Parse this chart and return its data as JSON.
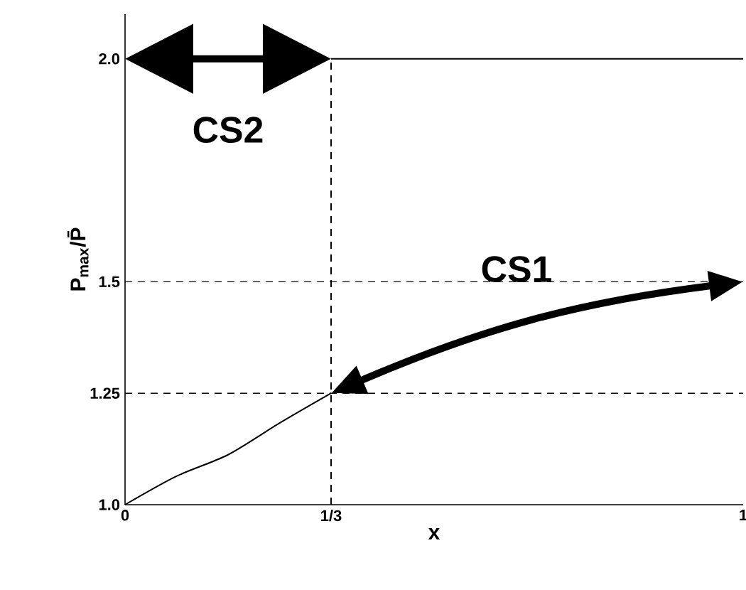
{
  "chart_data": {
    "type": "line",
    "xlabel": "x",
    "ylabel": "P$_{max}$/P̄",
    "xlim": [
      0,
      1
    ],
    "ylim": [
      1.0,
      2.1
    ],
    "xticks": [
      0,
      {
        "value": 0.3333,
        "label": "1/3"
      },
      1
    ],
    "yticks": [
      {
        "value": 1.0,
        "label": "1.0"
      },
      1.25,
      1.5,
      {
        "value": 2.0,
        "label": "2.0"
      }
    ],
    "series": [
      {
        "color": "#000000",
        "x": [
          0,
          0.0833,
          0.1667,
          0.25,
          0.3333
        ],
        "values": [
          1.0,
          1.064,
          1.112,
          1.183,
          1.25
        ]
      },
      {
        "color": "#000000",
        "x": [
          0.3333,
          1
        ],
        "values": [
          2.0,
          2.0
        ]
      }
    ],
    "ref_lines": [
      {
        "axis": "x",
        "value": 0.3333,
        "line_style": "dashed"
      },
      {
        "axis": "y",
        "value": 1.5,
        "line_style": "dashed"
      },
      {
        "axis": "y",
        "value": 1.25,
        "line_style": "dashed"
      }
    ],
    "annotations": [
      "CS1",
      "CS2"
    ],
    "marker": "none",
    "line_style": "solid",
    "grid": false
  }
}
